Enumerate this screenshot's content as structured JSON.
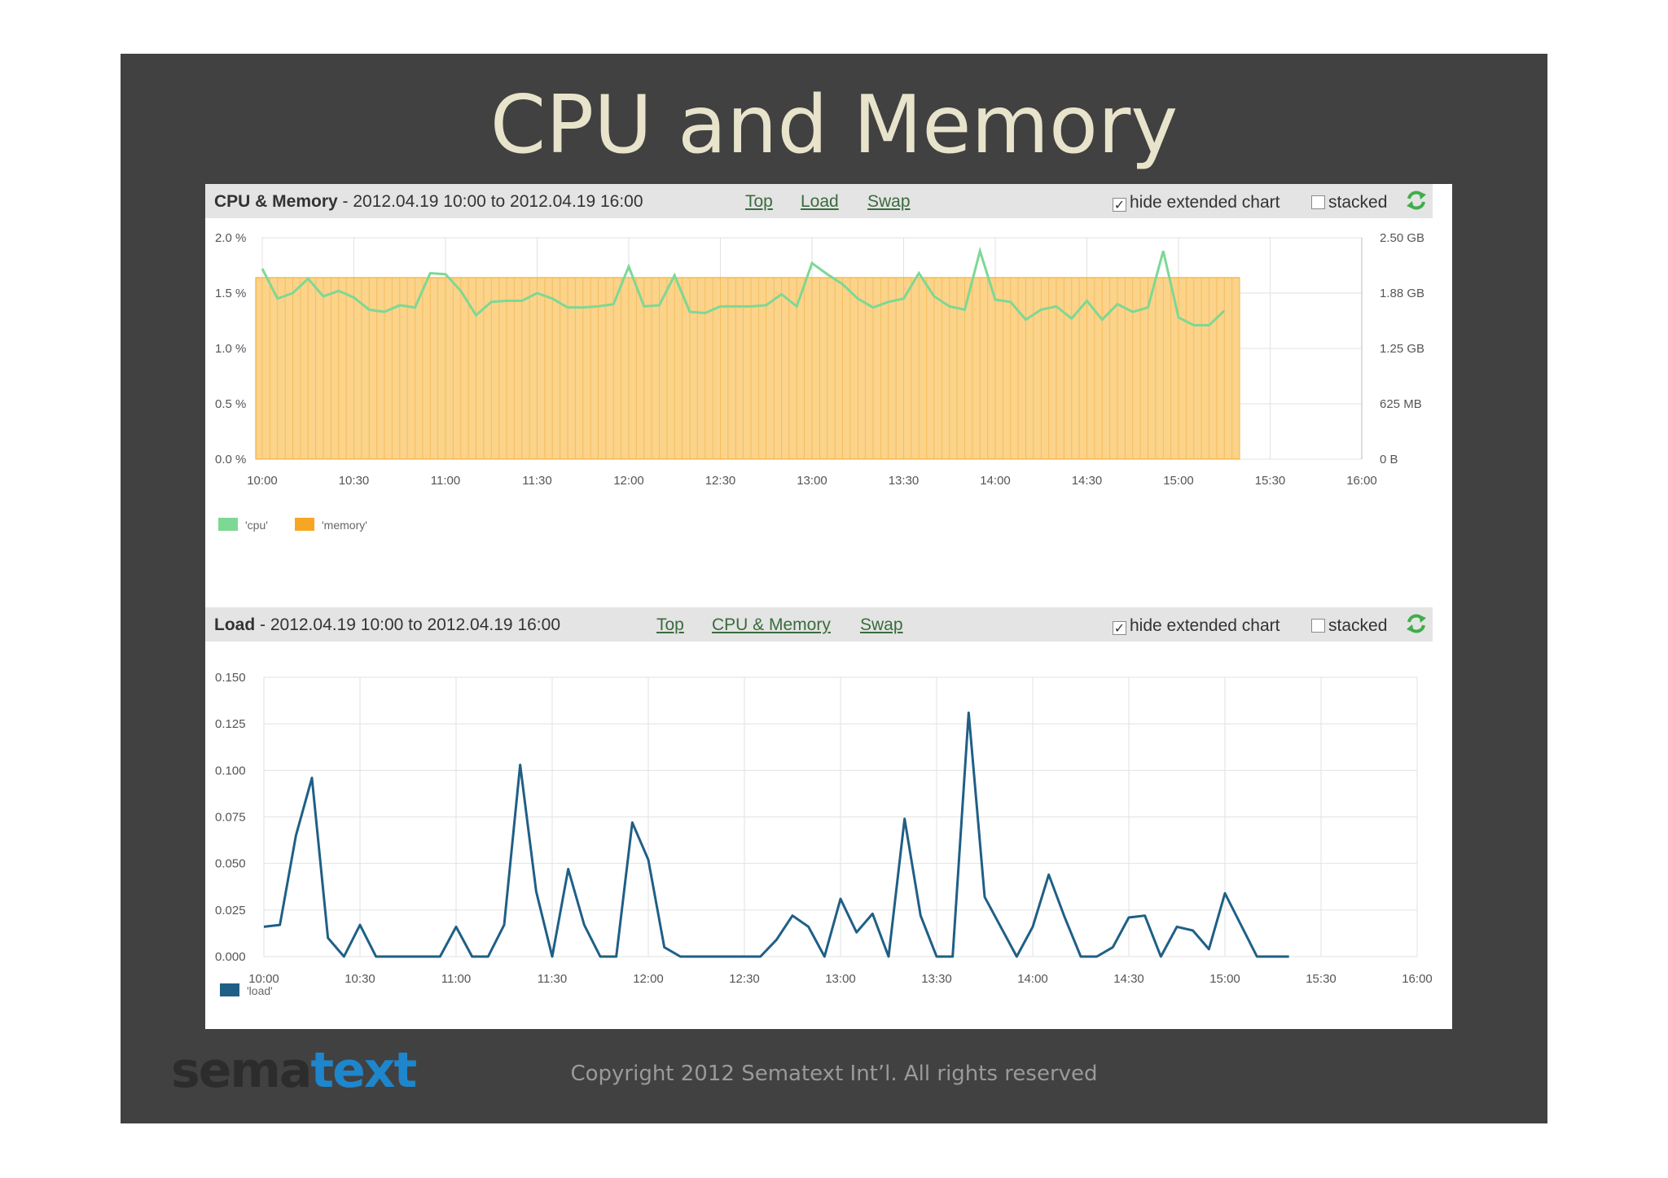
{
  "slide_title": "CPU and Memory",
  "footer": {
    "logo_part1": "sema",
    "logo_part2": "text",
    "copyright": "Copyright 2012 Sematext Int’l. All rights reserved"
  },
  "colors": {
    "slide_bg": "#414141",
    "cpu": "#7dd895",
    "memory": "#f7a623",
    "memory_fill": "#fbd38a",
    "load": "#1f5f86"
  },
  "cpu_panel": {
    "title": "CPU & Memory",
    "range": " - 2012.04.19 10:00 to 2012.04.19 16:00",
    "links": [
      "Top",
      "Load",
      "Swap"
    ],
    "hide_extended_label": "hide extended chart",
    "hide_extended_checked": true,
    "stacked_label": "stacked",
    "stacked_checked": false,
    "refresh_icon": "refresh-icon"
  },
  "load_panel": {
    "title": "Load",
    "range": " - 2012.04.19 10:00 to 2012.04.19 16:00",
    "links": [
      "Top",
      "CPU & Memory",
      "Swap"
    ],
    "hide_extended_label": "hide extended chart",
    "hide_extended_checked": true,
    "stacked_label": "stacked",
    "stacked_checked": false,
    "refresh_icon": "refresh-icon"
  },
  "chart_data": [
    {
      "type": "area",
      "x_ticks": [
        "10:00",
        "10:30",
        "11:00",
        "11:30",
        "12:00",
        "12:30",
        "13:00",
        "13:30",
        "14:00",
        "14:30",
        "15:00",
        "15:30",
        "16:00"
      ],
      "y_ticks_left": [
        "0.0 %",
        "0.5 %",
        "1.0 %",
        "1.5 %",
        "2.0 %"
      ],
      "y_ticks_right": [
        "0 B",
        "625 MB",
        "1.25 GB",
        "1.88 GB",
        "2.50 GB"
      ],
      "ylim_left": [
        0,
        2.0
      ],
      "ylim_right_gb": [
        0,
        2.5
      ],
      "grid": true,
      "legend_position": "bottom-left",
      "series": [
        {
          "name": "'cpu'",
          "axis": "left",
          "unit": "%",
          "points": [
            [
              "10:00",
              1.72
            ],
            [
              "10:05",
              1.45
            ],
            [
              "10:10",
              1.5
            ],
            [
              "10:15",
              1.63
            ],
            [
              "10:20",
              1.47
            ],
            [
              "10:25",
              1.52
            ],
            [
              "10:30",
              1.46
            ],
            [
              "10:35",
              1.35
            ],
            [
              "10:40",
              1.33
            ],
            [
              "10:45",
              1.39
            ],
            [
              "10:50",
              1.37
            ],
            [
              "10:55",
              1.68
            ],
            [
              "11:00",
              1.67
            ],
            [
              "11:05",
              1.52
            ],
            [
              "11:10",
              1.3
            ],
            [
              "11:15",
              1.42
            ],
            [
              "11:20",
              1.43
            ],
            [
              "11:25",
              1.43
            ],
            [
              "11:30",
              1.5
            ],
            [
              "11:35",
              1.45
            ],
            [
              "11:40",
              1.37
            ],
            [
              "11:45",
              1.37
            ],
            [
              "11:50",
              1.38
            ],
            [
              "11:55",
              1.4
            ],
            [
              "12:00",
              1.74
            ],
            [
              "12:05",
              1.38
            ],
            [
              "12:10",
              1.39
            ],
            [
              "12:15",
              1.66
            ],
            [
              "12:20",
              1.33
            ],
            [
              "12:25",
              1.32
            ],
            [
              "12:30",
              1.38
            ],
            [
              "12:35",
              1.38
            ],
            [
              "12:40",
              1.38
            ],
            [
              "12:45",
              1.39
            ],
            [
              "12:50",
              1.49
            ],
            [
              "12:55",
              1.38
            ],
            [
              "13:00",
              1.77
            ],
            [
              "13:05",
              1.67
            ],
            [
              "13:10",
              1.58
            ],
            [
              "13:15",
              1.45
            ],
            [
              "13:20",
              1.37
            ],
            [
              "13:25",
              1.42
            ],
            [
              "13:30",
              1.45
            ],
            [
              "13:35",
              1.68
            ],
            [
              "13:40",
              1.47
            ],
            [
              "13:45",
              1.38
            ],
            [
              "13:50",
              1.35
            ],
            [
              "13:55",
              1.88
            ],
            [
              "14:00",
              1.44
            ],
            [
              "14:05",
              1.42
            ],
            [
              "14:10",
              1.26
            ],
            [
              "14:15",
              1.35
            ],
            [
              "14:20",
              1.38
            ],
            [
              "14:25",
              1.27
            ],
            [
              "14:30",
              1.43
            ],
            [
              "14:35",
              1.26
            ],
            [
              "14:40",
              1.4
            ],
            [
              "14:45",
              1.33
            ],
            [
              "14:50",
              1.37
            ],
            [
              "14:55",
              1.88
            ],
            [
              "15:00",
              1.28
            ],
            [
              "15:05",
              1.21
            ],
            [
              "15:10",
              1.21
            ],
            [
              "15:15",
              1.34
            ]
          ]
        },
        {
          "name": "'memory'",
          "axis": "right",
          "unit": "GB",
          "points": [
            [
              "10:00",
              2.05
            ],
            [
              "15:20",
              2.05
            ]
          ]
        }
      ]
    },
    {
      "type": "line",
      "x_ticks": [
        "10:00",
        "10:30",
        "11:00",
        "11:30",
        "12:00",
        "12:30",
        "13:00",
        "13:30",
        "14:00",
        "14:30",
        "15:00",
        "15:30",
        "16:00"
      ],
      "y_ticks": [
        "0.000",
        "0.025",
        "0.050",
        "0.075",
        "0.100",
        "0.125",
        "0.150"
      ],
      "ylim": [
        0,
        0.15
      ],
      "grid": true,
      "legend_position": "bottom-left",
      "series": [
        {
          "name": "'load'",
          "points": [
            [
              "10:00",
              0.016
            ],
            [
              "10:05",
              0.017
            ],
            [
              "10:10",
              0.065
            ],
            [
              "10:15",
              0.096
            ],
            [
              "10:20",
              0.01
            ],
            [
              "10:25",
              0.0
            ],
            [
              "10:30",
              0.017
            ],
            [
              "10:35",
              0.0
            ],
            [
              "10:40",
              0.0
            ],
            [
              "10:45",
              0.0
            ],
            [
              "10:50",
              0.0
            ],
            [
              "10:55",
              0.0
            ],
            [
              "11:00",
              0.016
            ],
            [
              "11:05",
              0.0
            ],
            [
              "11:10",
              0.0
            ],
            [
              "11:15",
              0.017
            ],
            [
              "11:20",
              0.103
            ],
            [
              "11:25",
              0.035
            ],
            [
              "11:30",
              0.0
            ],
            [
              "11:35",
              0.047
            ],
            [
              "11:40",
              0.017
            ],
            [
              "11:45",
              0.0
            ],
            [
              "11:50",
              0.0
            ],
            [
              "11:55",
              0.072
            ],
            [
              "12:00",
              0.052
            ],
            [
              "12:05",
              0.005
            ],
            [
              "12:10",
              0.0
            ],
            [
              "12:15",
              0.0
            ],
            [
              "12:20",
              0.0
            ],
            [
              "12:25",
              0.0
            ],
            [
              "12:30",
              0.0
            ],
            [
              "12:35",
              0.0
            ],
            [
              "12:40",
              0.009
            ],
            [
              "12:45",
              0.022
            ],
            [
              "12:50",
              0.016
            ],
            [
              "12:55",
              0.0
            ],
            [
              "13:00",
              0.031
            ],
            [
              "13:05",
              0.013
            ],
            [
              "13:10",
              0.023
            ],
            [
              "13:15",
              0.0
            ],
            [
              "13:20",
              0.074
            ],
            [
              "13:25",
              0.022
            ],
            [
              "13:30",
              0.0
            ],
            [
              "13:35",
              0.0
            ],
            [
              "13:40",
              0.131
            ],
            [
              "13:45",
              0.032
            ],
            [
              "13:50",
              0.016
            ],
            [
              "13:55",
              0.0
            ],
            [
              "14:00",
              0.016
            ],
            [
              "14:05",
              0.044
            ],
            [
              "14:10",
              0.021
            ],
            [
              "14:15",
              0.0
            ],
            [
              "14:20",
              0.0
            ],
            [
              "14:25",
              0.005
            ],
            [
              "14:30",
              0.021
            ],
            [
              "14:35",
              0.022
            ],
            [
              "14:40",
              0.0
            ],
            [
              "14:45",
              0.016
            ],
            [
              "14:50",
              0.014
            ],
            [
              "14:55",
              0.004
            ],
            [
              "15:00",
              0.034
            ],
            [
              "15:05",
              0.017
            ],
            [
              "15:10",
              0.0
            ],
            [
              "15:15",
              0.0
            ],
            [
              "15:20",
              0.0
            ]
          ]
        }
      ]
    }
  ]
}
